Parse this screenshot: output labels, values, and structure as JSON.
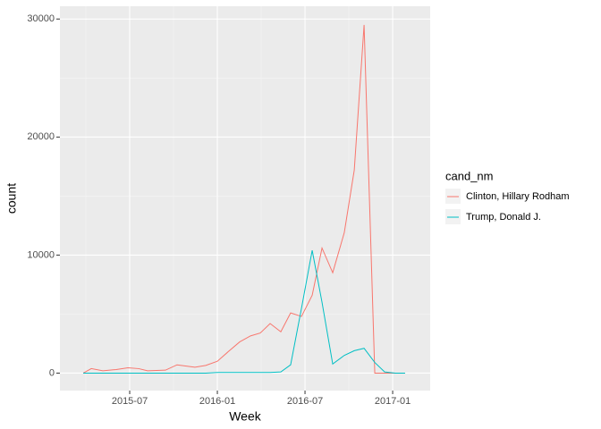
{
  "chart_data": {
    "type": "line",
    "x_label": "Week",
    "y_label": "count",
    "legend_title": "cand_nm",
    "legend": "right",
    "x": [
      2015.235,
      2015.281,
      2015.347,
      2015.423,
      2015.49,
      2015.551,
      2015.602,
      2015.704,
      2015.77,
      2015.872,
      2015.934,
      2016.0,
      2016.061,
      2016.128,
      2016.189,
      2016.245,
      2016.301,
      2016.362,
      2016.418,
      2016.48,
      2016.541,
      2016.597,
      2016.658,
      2016.724,
      2016.781,
      2016.837,
      2016.898,
      2016.954,
      2017.015,
      2017.071
    ],
    "series": [
      {
        "name": "Clinton, Hillary Rodham",
        "color": "#F8766D",
        "values": [
          0,
          380,
          200,
          300,
          450,
          380,
          200,
          250,
          700,
          500,
          650,
          1000,
          1800,
          2650,
          3150,
          3400,
          4200,
          3500,
          5100,
          4800,
          6600,
          10600,
          8500,
          11900,
          17200,
          29500,
          0,
          0,
          0,
          0
        ]
      },
      {
        "name": "Trump, Donald J.",
        "color": "#00BFC4",
        "values": [
          0,
          0,
          0,
          0,
          0,
          0,
          0,
          0,
          0,
          0,
          0,
          50,
          50,
          50,
          50,
          50,
          50,
          100,
          700,
          5500,
          10400,
          6000,
          770,
          1500,
          1900,
          2100,
          900,
          100,
          0,
          0
        ]
      }
    ],
    "xlim": [
      2015.102,
      2017.214
    ],
    "xticks": [
      {
        "value": 2015.5,
        "label": "2015-07"
      },
      {
        "value": 2016.0,
        "label": "2016-01"
      },
      {
        "value": 2016.5,
        "label": "2016-07"
      },
      {
        "value": 2017.0,
        "label": "2017-01"
      }
    ],
    "ylim": [
      -1480,
      31080
    ],
    "yticks": [
      0,
      10000,
      20000,
      30000
    ],
    "grid": true,
    "background": "#EBEBEB"
  }
}
